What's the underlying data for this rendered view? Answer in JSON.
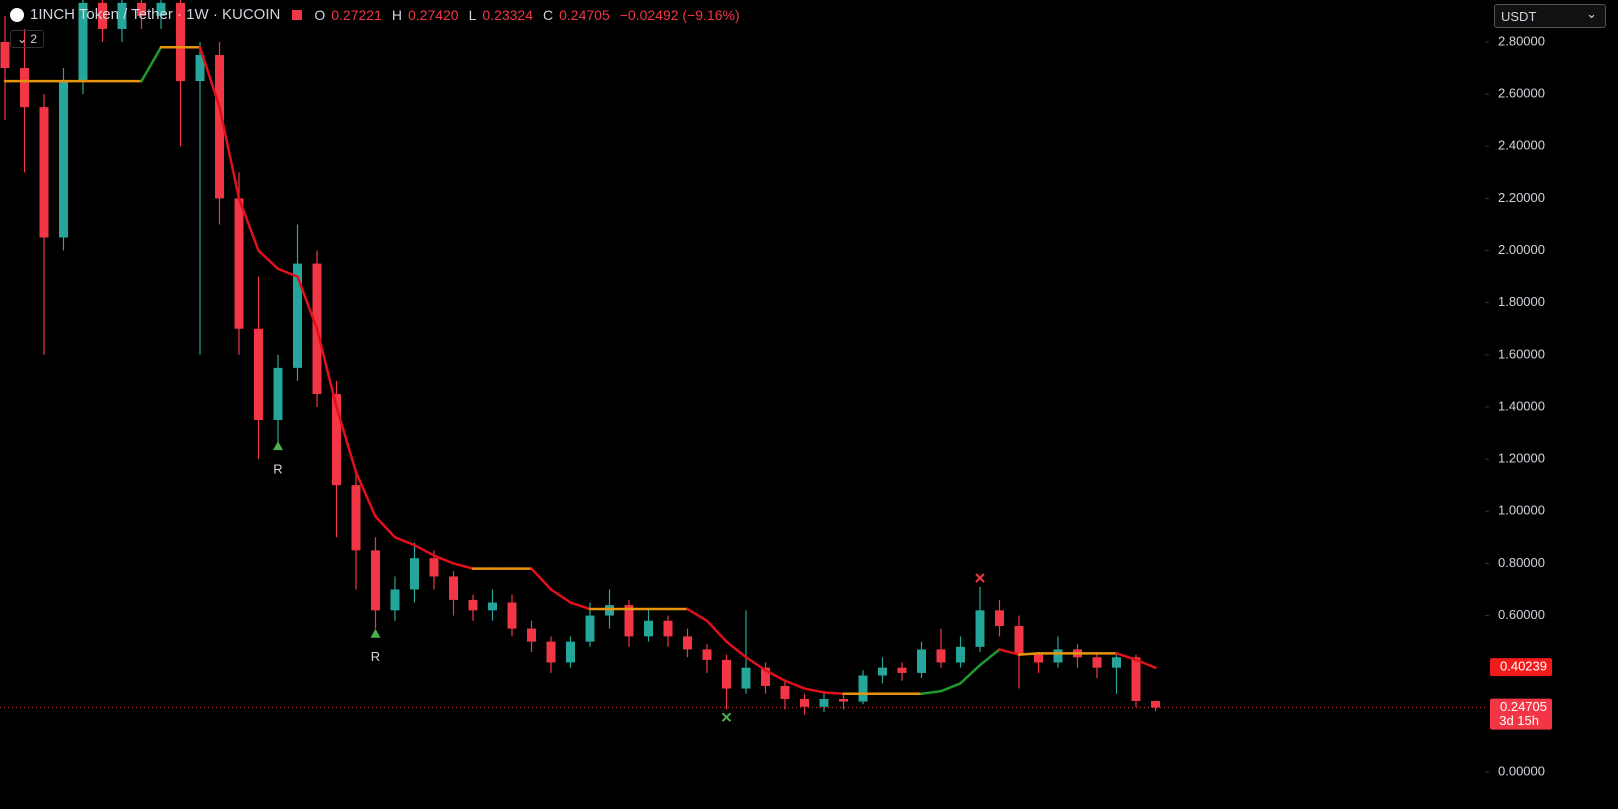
{
  "chart_data": {
    "type": "candlestick",
    "symbol": "1INCH Token / Tether · 1W · KUCOIN",
    "ohlc_legend": [
      {
        "key": "O",
        "value": 0.27221,
        "label": "0.27221"
      },
      {
        "key": "H",
        "value": 0.2742,
        "label": "0.27420"
      },
      {
        "key": "L",
        "value": 0.23324,
        "label": "0.23324"
      },
      {
        "key": "C",
        "value": 0.24705,
        "label": "0.24705"
      }
    ],
    "change": {
      "value": -0.02492,
      "label": "−0.02492 (−9.16%)"
    },
    "indicator_count": 2,
    "currency": "USDT",
    "up_color": "#26a69a",
    "down_color": "#f23645",
    "open": [
      2.8,
      2.7,
      2.55,
      2.05,
      2.65,
      2.95,
      2.85,
      2.95,
      2.9,
      2.95,
      2.65,
      2.75,
      2.2,
      1.7,
      1.35,
      1.55,
      1.95,
      1.45,
      1.1,
      0.85,
      0.62,
      0.7,
      0.82,
      0.75,
      0.66,
      0.62,
      0.65,
      0.55,
      0.5,
      0.42,
      0.5,
      0.6,
      0.64,
      0.52,
      0.58,
      0.52,
      0.47,
      0.43,
      0.32,
      0.4,
      0.33,
      0.28,
      0.25,
      0.28,
      0.27,
      0.37,
      0.4,
      0.38,
      0.47,
      0.42,
      0.48,
      0.62,
      0.56,
      0.45,
      0.42,
      0.47,
      0.44,
      0.4,
      0.44,
      0.27221
    ],
    "high": [
      2.9,
      2.85,
      2.6,
      2.7,
      3.0,
      3.0,
      3.0,
      3.0,
      3.0,
      3.0,
      2.8,
      2.8,
      2.3,
      1.9,
      1.6,
      2.1,
      2.0,
      1.5,
      1.15,
      0.9,
      0.75,
      0.88,
      0.85,
      0.77,
      0.68,
      0.7,
      0.68,
      0.58,
      0.52,
      0.52,
      0.65,
      0.7,
      0.66,
      0.62,
      0.6,
      0.55,
      0.49,
      0.45,
      0.62,
      0.42,
      0.35,
      0.3,
      0.31,
      0.3,
      0.39,
      0.44,
      0.42,
      0.5,
      0.55,
      0.52,
      0.71,
      0.66,
      0.6,
      0.46,
      0.52,
      0.49,
      0.46,
      0.46,
      0.45,
      0.2742
    ],
    "low": [
      2.5,
      2.3,
      1.6,
      2.0,
      2.6,
      2.8,
      2.8,
      2.85,
      2.85,
      2.4,
      1.6,
      2.1,
      1.6,
      1.2,
      1.25,
      1.5,
      1.4,
      0.9,
      0.7,
      0.55,
      0.58,
      0.65,
      0.7,
      0.6,
      0.58,
      0.58,
      0.52,
      0.46,
      0.38,
      0.4,
      0.48,
      0.55,
      0.48,
      0.5,
      0.48,
      0.44,
      0.38,
      0.24,
      0.3,
      0.3,
      0.24,
      0.22,
      0.23,
      0.24,
      0.26,
      0.34,
      0.35,
      0.36,
      0.4,
      0.4,
      0.46,
      0.52,
      0.32,
      0.38,
      0.4,
      0.4,
      0.36,
      0.3,
      0.25,
      0.23324
    ],
    "close": [
      2.7,
      2.55,
      2.05,
      2.65,
      2.95,
      2.85,
      2.95,
      2.9,
      2.95,
      2.65,
      2.75,
      2.2,
      1.7,
      1.35,
      1.55,
      1.95,
      1.45,
      1.1,
      0.85,
      0.62,
      0.7,
      0.82,
      0.75,
      0.66,
      0.62,
      0.65,
      0.55,
      0.5,
      0.42,
      0.5,
      0.6,
      0.64,
      0.52,
      0.58,
      0.52,
      0.47,
      0.43,
      0.32,
      0.4,
      0.33,
      0.28,
      0.25,
      0.28,
      0.27,
      0.37,
      0.4,
      0.38,
      0.47,
      0.42,
      0.48,
      0.62,
      0.56,
      0.45,
      0.42,
      0.47,
      0.44,
      0.4,
      0.44,
      0.27221,
      0.24705
    ],
    "trend_line": {
      "values": [
        2.65,
        2.65,
        2.65,
        2.65,
        2.65,
        2.65,
        2.65,
        2.65,
        2.78,
        2.78,
        2.78,
        2.55,
        2.2,
        2.0,
        1.93,
        1.9,
        1.7,
        1.4,
        1.15,
        0.98,
        0.9,
        0.87,
        0.83,
        0.8,
        0.78,
        0.78,
        0.78,
        0.78,
        0.7,
        0.65,
        0.625,
        0.625,
        0.625,
        0.625,
        0.625,
        0.625,
        0.58,
        0.5,
        0.44,
        0.39,
        0.35,
        0.32,
        0.305,
        0.3,
        0.3,
        0.3,
        0.3,
        0.3,
        0.31,
        0.34,
        0.41,
        0.47,
        0.45,
        0.455,
        0.455,
        0.455,
        0.455,
        0.455,
        0.43,
        0.4
      ],
      "colors": [
        "#e8930c",
        "#e8930c",
        "#e8930c",
        "#e8930c",
        "#e8930c",
        "#e8930c",
        "#e8930c",
        "#e8930c",
        "#1f9a2e",
        "#e8930c",
        "#e8930c",
        "#e0101c",
        "#e0101c",
        "#e0101c",
        "#e0101c",
        "#e0101c",
        "#e0101c",
        "#e0101c",
        "#e0101c",
        "#e0101c",
        "#e0101c",
        "#e0101c",
        "#e0101c",
        "#e0101c",
        "#e0101c",
        "#e8930c",
        "#e8930c",
        "#e8930c",
        "#e0101c",
        "#e0101c",
        "#e0101c",
        "#e8930c",
        "#e8930c",
        "#e8930c",
        "#e8930c",
        "#e8930c",
        "#e0101c",
        "#e0101c",
        "#e0101c",
        "#e0101c",
        "#e0101c",
        "#e0101c",
        "#e0101c",
        "#e0101c",
        "#e8930c",
        "#e8930c",
        "#e8930c",
        "#e8930c",
        "#1f9a2e",
        "#1f9a2e",
        "#1f9a2e",
        "#1f9a2e",
        "#e0101c",
        "#e8930c",
        "#e8930c",
        "#e8930c",
        "#e8930c",
        "#e8930c",
        "#e0101c",
        "#e0101c"
      ]
    },
    "markers": [
      {
        "at": 14,
        "value": 1.25,
        "shape": "triangle",
        "label": "R",
        "color": "#4caf50"
      },
      {
        "at": 19,
        "value": 0.53,
        "shape": "triangle",
        "label": "R",
        "color": "#4caf50"
      },
      {
        "at": 37,
        "value": 0.21,
        "shape": "cross",
        "color": "#4caf50"
      },
      {
        "at": 50,
        "value": 0.744,
        "shape": "cross",
        "color": "#f23645"
      }
    ],
    "indicator_price": {
      "value": 0.40239,
      "color": "#f21b1b"
    },
    "last_price": {
      "value": 0.24705,
      "countdown": "3d 15h",
      "color": "#f23645"
    },
    "ylim": [
      -0.142,
      2.961
    ],
    "yticks": [
      {
        "value": 0,
        "label": "0.00000"
      },
      {
        "value": 0.6,
        "label": "0.60000"
      },
      {
        "value": 0.8,
        "label": "0.80000"
      },
      {
        "value": 1.0,
        "label": "1.00000"
      },
      {
        "value": 1.2,
        "label": "1.20000"
      },
      {
        "value": 1.4,
        "label": "1.40000"
      },
      {
        "value": 1.6,
        "label": "1.60000"
      },
      {
        "value": 1.8,
        "label": "1.80000"
      },
      {
        "value": 2.0,
        "label": "2.00000"
      },
      {
        "value": 2.2,
        "label": "2.20000"
      },
      {
        "value": 2.4,
        "label": "2.40000"
      },
      {
        "value": 2.6,
        "label": "2.60000"
      },
      {
        "value": 2.8,
        "label": "2.80000"
      }
    ]
  }
}
